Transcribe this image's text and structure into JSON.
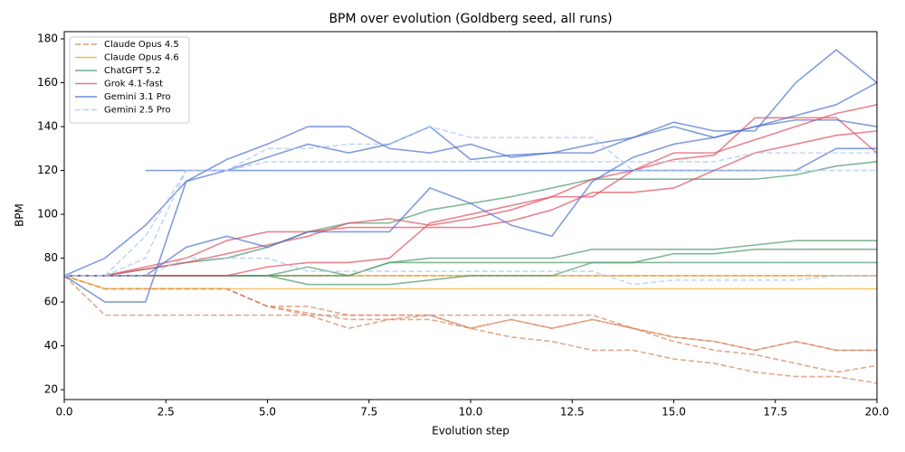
{
  "chart_data": {
    "type": "line",
    "title": "BPM over evolution (Goldberg seed, all runs)",
    "x_label": "Evolution step",
    "y_label": "BPM",
    "x": [
      0,
      1,
      2,
      3,
      4,
      5,
      6,
      7,
      8,
      9,
      10,
      11,
      12,
      13,
      14,
      15,
      16,
      17,
      18,
      19,
      20
    ],
    "xlim": [
      0,
      20
    ],
    "ylim": [
      15.5,
      183.3
    ],
    "xticks": [
      {
        "value": 0,
        "label": "0.0"
      },
      2.5,
      {
        "value": 5,
        "label": "5.0"
      },
      7.5,
      {
        "value": 10,
        "label": "10.0"
      },
      12.5,
      {
        "value": 15,
        "label": "15.0"
      },
      17.5,
      {
        "value": 20,
        "label": "20.0"
      }
    ],
    "yticks": [
      20,
      40,
      60,
      80,
      100,
      120,
      140,
      160,
      180
    ],
    "legend": "upper left",
    "grid": false,
    "series": [
      {
        "name": "Claude Opus 4.5",
        "color": "#d9825b",
        "dash": true,
        "runs": [
          [
            72,
            54,
            54,
            54,
            54,
            54,
            54,
            54,
            54,
            54,
            54,
            54,
            54,
            54,
            48,
            44,
            42,
            38,
            42,
            38,
            38
          ],
          [
            72,
            72,
            72,
            72,
            72,
            72,
            72,
            72,
            72,
            72,
            72,
            72,
            72,
            72,
            72,
            72,
            72,
            72,
            72,
            72,
            72
          ],
          [
            72,
            66,
            66,
            66,
            66,
            58,
            58,
            54,
            54,
            54,
            48,
            52,
            48,
            52,
            48,
            42,
            38,
            36,
            32,
            28,
            31
          ],
          [
            72,
            66,
            66,
            66,
            66,
            58,
            55,
            52,
            52,
            52,
            48,
            44,
            42,
            38,
            38,
            34,
            32,
            28,
            26,
            26,
            23
          ],
          [
            72,
            66,
            66,
            66,
            66,
            58,
            54,
            48,
            52,
            54,
            48,
            52,
            48,
            52,
            48,
            44,
            42,
            38,
            42,
            38,
            38
          ]
        ]
      },
      {
        "name": "Claude Opus 4.6",
        "color": "#f0a830",
        "dash": false,
        "runs": [
          [
            72,
            66,
            66,
            66,
            66,
            66,
            66,
            66,
            66,
            66,
            66,
            66,
            66,
            66,
            66,
            66,
            66,
            66,
            66,
            66,
            66
          ],
          [
            72,
            72,
            72,
            72,
            72,
            72,
            72,
            72,
            72,
            72,
            72,
            72,
            72,
            72,
            72,
            72,
            72,
            72,
            72,
            72,
            72
          ]
        ]
      },
      {
        "name": "ChatGPT 5.2",
        "color": "#4f9a6c",
        "dash": false,
        "runs": [
          [
            72,
            72,
            72,
            72,
            72,
            72,
            68,
            68,
            68,
            70,
            72,
            72,
            72,
            78,
            78,
            82,
            82,
            84,
            84,
            84,
            84
          ],
          [
            72,
            72,
            75,
            78,
            80,
            85,
            92,
            96,
            96,
            102,
            105,
            108,
            112,
            116,
            116,
            116,
            116,
            116,
            118,
            122,
            124
          ],
          [
            72,
            72,
            72,
            72,
            72,
            72,
            76,
            72,
            78,
            80,
            80,
            80,
            80,
            84,
            84,
            84,
            84,
            86,
            88,
            88,
            88
          ],
          [
            72,
            72,
            72,
            72,
            72,
            72,
            72,
            72,
            78,
            78,
            78,
            78,
            78,
            78,
            78,
            78,
            78,
            78,
            78,
            78,
            78
          ]
        ]
      },
      {
        "name": "Grok 4.1-fast",
        "color": "#e05060",
        "dash": false,
        "runs": [
          [
            72,
            72,
            76,
            80,
            88,
            92,
            92,
            94,
            94,
            94,
            94,
            97,
            102,
            110,
            110,
            112,
            120,
            128,
            132,
            136,
            138
          ],
          [
            72,
            72,
            72,
            72,
            72,
            76,
            78,
            78,
            80,
            96,
            100,
            104,
            108,
            108,
            120,
            125,
            127,
            144,
            144,
            144,
            128
          ],
          [
            72,
            72,
            75,
            78,
            82,
            86,
            90,
            96,
            98,
            95,
            98,
            102,
            108,
            116,
            120,
            128,
            128,
            134,
            140,
            146,
            150
          ]
        ]
      },
      {
        "name": "Gemini 3.1 Pro",
        "color": "#4c72d0",
        "dash": false,
        "runs": [
          [
            72,
            80,
            95,
            115,
            125,
            132,
            140,
            140,
            130,
            128,
            132,
            126,
            128,
            132,
            135,
            140,
            135,
            140,
            145,
            150,
            160
          ],
          [
            72,
            60,
            60,
            115,
            120,
            126,
            132,
            128,
            132,
            140,
            125,
            127,
            128,
            128,
            135,
            142,
            138,
            138,
            160,
            175,
            160
          ],
          [
            null,
            null,
            120,
            120,
            120,
            120,
            120,
            120,
            120,
            120,
            120,
            120,
            120,
            120,
            120,
            120,
            120,
            120,
            120,
            130,
            130
          ],
          [
            72,
            72,
            72,
            85,
            90,
            85,
            92,
            92,
            92,
            112,
            105,
            95,
            90,
            115,
            126,
            132,
            135,
            140,
            143,
            143,
            140
          ]
        ]
      },
      {
        "name": "Gemini 2.5 Pro",
        "color": "#a8c8f0",
        "dash": true,
        "runs": [
          [
            72,
            72,
            90,
            120,
            120,
            124,
            124,
            124,
            124,
            124,
            124,
            124,
            124,
            124,
            124,
            124,
            124,
            128,
            128,
            128,
            128
          ],
          [
            72,
            72,
            80,
            120,
            120,
            130,
            130,
            132,
            132,
            140,
            135,
            135,
            135,
            135,
            120,
            120,
            120,
            120,
            120,
            120,
            120
          ],
          [
            72,
            72,
            72,
            80,
            80,
            80,
            74,
            74,
            74,
            74,
            74,
            74,
            74,
            74,
            68,
            70,
            70,
            70,
            70,
            72,
            72
          ]
        ]
      }
    ]
  }
}
